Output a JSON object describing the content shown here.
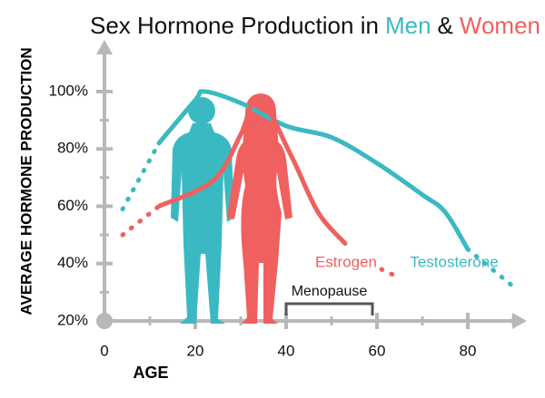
{
  "chart_data": {
    "type": "line",
    "title_parts": [
      {
        "text": "Sex Hormone Production in",
        "color": "#111111"
      },
      {
        "text": "Men",
        "color": "#3bb9c2"
      },
      {
        "text": "&",
        "color": "#111111"
      },
      {
        "text": "Women",
        "color": "#f0605f"
      }
    ],
    "x_label": "AGE",
    "y_label": "AVERAGE HORMONE PRODUCTION",
    "xlim": [
      0,
      93
    ],
    "ylim": [
      20,
      118
    ],
    "xticks": [
      0,
      20,
      40,
      60,
      80
    ],
    "xminorticks": [
      10,
      30,
      50,
      70,
      90
    ],
    "yticks": [
      {
        "value": 20,
        "label": "20%"
      },
      {
        "value": 40,
        "label": "40%"
      },
      {
        "value": 60,
        "label": "60%"
      },
      {
        "value": 80,
        "label": "80%"
      },
      {
        "value": 100,
        "label": "100%"
      }
    ],
    "yminorticks": [
      30,
      50,
      70,
      90
    ],
    "axis_color": "#b8b8b8",
    "series": [
      {
        "name": "Testosterone",
        "color": "#3bb9c2",
        "solid_range": [
          12,
          80
        ],
        "x": [
          4,
          12,
          20,
          22,
          30,
          40,
          50,
          60,
          70,
          75,
          80,
          90
        ],
        "values": [
          59,
          82,
          97,
          100,
          96,
          88,
          84,
          75,
          64,
          58,
          45,
          32
        ]
      },
      {
        "name": "Estrogen",
        "color": "#f0605f",
        "solid_range": [
          12,
          53
        ],
        "x": [
          4,
          12,
          24,
          30,
          34,
          41,
          47,
          53,
          57,
          61,
          65
        ],
        "values": [
          50,
          60,
          69,
          85,
          98,
          78,
          58,
          47,
          null,
          38,
          35
        ]
      }
    ],
    "annotation": {
      "label": "Menopause",
      "range": [
        40,
        59
      ]
    }
  }
}
